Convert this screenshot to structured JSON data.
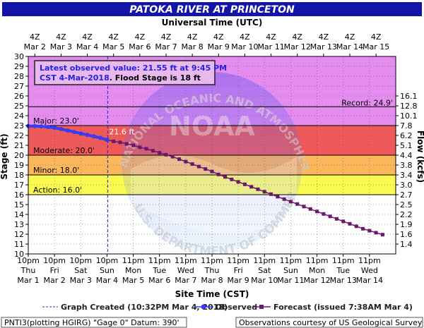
{
  "chart_data": {
    "type": "line",
    "title": "PATOKA RIVER AT PRINCETON",
    "top_axis_title": "Universal Time (UTC)",
    "bottom_axis_title": "Site Time (CST)",
    "ylabel": "Stage (ft)",
    "y2label": "Flow (kcfs)",
    "ylim": [
      10,
      30
    ],
    "y_ticks": [
      10,
      11,
      12,
      13,
      14,
      15,
      16,
      17,
      18,
      19,
      20,
      21,
      22,
      23,
      24,
      25,
      26,
      27,
      28,
      29,
      30
    ],
    "xlim": [
      0,
      14
    ],
    "x_units": "days after 10pm Thu Mar 1 (CST)",
    "top_ticks": [
      {
        "t": "4Z",
        "d": "Mar 2"
      },
      {
        "t": "4Z",
        "d": "Mar 3"
      },
      {
        "t": "4Z",
        "d": "Mar 4"
      },
      {
        "t": "4Z",
        "d": "Mar 5"
      },
      {
        "t": "4Z",
        "d": "Mar 6"
      },
      {
        "t": "4Z",
        "d": "Mar 7"
      },
      {
        "t": "4Z",
        "d": "Mar 8"
      },
      {
        "t": "4Z",
        "d": "Mar 9"
      },
      {
        "t": "4Z",
        "d": "Mar 10"
      },
      {
        "t": "4Z",
        "d": "Mar 11"
      },
      {
        "t": "4Z",
        "d": "Mar 12"
      },
      {
        "t": "4Z",
        "d": "Mar 13"
      },
      {
        "t": "4Z",
        "d": "Mar 14"
      },
      {
        "t": "4Z",
        "d": "Mar 15"
      }
    ],
    "bottom_ticks": [
      {
        "t": "10pm",
        "w": "Thu",
        "d": "Mar 1"
      },
      {
        "t": "10pm",
        "w": "Fri",
        "d": "Mar 2"
      },
      {
        "t": "10pm",
        "w": "Sat",
        "d": "Mar 3"
      },
      {
        "t": "10pm",
        "w": "Sun",
        "d": "Mar 4"
      },
      {
        "t": "11pm",
        "w": "Mon",
        "d": "Mar 5"
      },
      {
        "t": "11pm",
        "w": "Tue",
        "d": "Mar 6"
      },
      {
        "t": "11pm",
        "w": "Wed",
        "d": "Mar 7"
      },
      {
        "t": "11pm",
        "w": "Thu",
        "d": "Mar 8"
      },
      {
        "t": "11pm",
        "w": "Fri",
        "d": "Mar 9"
      },
      {
        "t": "11pm",
        "w": "Sat",
        "d": "Mar 10"
      },
      {
        "t": "11pm",
        "w": "Sun",
        "d": "Mar 11"
      },
      {
        "t": "11pm",
        "w": "Mon",
        "d": "Mar 12"
      },
      {
        "t": "11pm",
        "w": "Tue",
        "d": "Mar 13"
      },
      {
        "t": "11pm",
        "w": "Wed",
        "d": "Mar 14"
      }
    ],
    "flow_ticks": [
      {
        "stage": 11,
        "label": "1.4"
      },
      {
        "stage": 12,
        "label": "1.6"
      },
      {
        "stage": 13,
        "label": "1.9"
      },
      {
        "stage": 14,
        "label": "2.2"
      },
      {
        "stage": 15,
        "label": "2.5"
      },
      {
        "stage": 16,
        "label": "2.7"
      },
      {
        "stage": 17,
        "label": "3.0"
      },
      {
        "stage": 18,
        "label": "3.4"
      },
      {
        "stage": 19,
        "label": "3.8"
      },
      {
        "stage": 20,
        "label": "4.4"
      },
      {
        "stage": 21,
        "label": "5.1"
      },
      {
        "stage": 22,
        "label": "6.2"
      },
      {
        "stage": 23,
        "label": "7.8"
      },
      {
        "stage": 24,
        "label": "10.1"
      },
      {
        "stage": 25,
        "label": "12.8"
      },
      {
        "stage": 26,
        "label": "16.1"
      }
    ],
    "bands": [
      {
        "name": "Major",
        "from": 23,
        "to": 30,
        "color": "#e58cf0"
      },
      {
        "name": "Moderate",
        "from": 20,
        "to": 23,
        "color": "#ee5a5a"
      },
      {
        "name": "Minor",
        "from": 18,
        "to": 20,
        "color": "#fcb65b"
      },
      {
        "name": "Action",
        "from": 16,
        "to": 18,
        "color": "#fafa50"
      },
      {
        "name": "Normal",
        "from": 10,
        "to": 16,
        "color": "#ffffff"
      }
    ],
    "thresholds": [
      {
        "label": "Major: 23.0'",
        "value": 23.0
      },
      {
        "label": "Moderate: 20.0'",
        "value": 20.0
      },
      {
        "label": "Minor: 18.0'",
        "value": 18.0
      },
      {
        "label": "Action: 16.0'",
        "value": 16.0
      }
    ],
    "record": {
      "label": "Record: 24.9'",
      "value": 24.9
    },
    "graph_created_x": 3.03,
    "observed": {
      "name": "Observed",
      "color": "#3b3bf0",
      "x": [
        0.0,
        0.25,
        0.5,
        0.75,
        1.0,
        1.25,
        1.5,
        1.75,
        2.0,
        2.25,
        2.5,
        2.75,
        3.0
      ],
      "y": [
        22.95,
        22.95,
        22.92,
        22.86,
        22.77,
        22.65,
        22.5,
        22.35,
        22.2,
        22.05,
        21.9,
        21.75,
        21.55
      ]
    },
    "observed_label": "21.6 ft",
    "forecast": {
      "name": "Forecast",
      "color": "#6a1a6a",
      "x": [
        3.0,
        3.25,
        3.5,
        3.75,
        4.0,
        4.25,
        4.5,
        4.75,
        5.0,
        5.25,
        5.5,
        5.75,
        6.0,
        6.25,
        6.5,
        6.75,
        7.0,
        7.25,
        7.5,
        7.75,
        8.0,
        8.25,
        8.5,
        8.75,
        9.0,
        9.25,
        9.5,
        9.75,
        10.0,
        10.25,
        10.5,
        10.75,
        11.0,
        11.25,
        11.5,
        11.75,
        12.0,
        12.25,
        12.5,
        12.75,
        13.0,
        13.25,
        13.5
      ],
      "y": [
        21.55,
        21.4,
        21.3,
        21.15,
        21.0,
        20.8,
        20.65,
        20.45,
        20.25,
        20.05,
        19.85,
        19.6,
        19.35,
        19.1,
        18.85,
        18.6,
        18.35,
        18.05,
        17.8,
        17.55,
        17.3,
        17.05,
        16.8,
        16.55,
        16.3,
        16.05,
        15.8,
        15.55,
        15.3,
        15.05,
        14.8,
        14.55,
        14.3,
        14.05,
        13.8,
        13.55,
        13.3,
        13.05,
        12.8,
        12.55,
        12.35,
        12.15,
        11.95
      ]
    },
    "info": {
      "line1": "Latest observed value: 21.55 ft at 9:45 PM",
      "line2a": "CST 4-Mar-2018",
      "line2b": ". Flood Stage is 18 ft"
    },
    "legend": {
      "graph_created": "Graph Created (10:32PM Mar 4, 2018)",
      "observed": "Observed",
      "forecast": "Forecast (issued 7:38AM Mar 4)"
    },
    "footer_left": "PNTI3(plotting HGIRG) \"Gage 0\" Datum: 390'",
    "footer_right": "Observations courtesy of US Geological Survey",
    "watermark_top": "NATIONAL OCEANIC AND ATMOSPHERIC ADMINISTRATION",
    "watermark_bottom": "U.S. DEPARTMENT OF COMMERCE",
    "watermark_center": "NOAA"
  }
}
